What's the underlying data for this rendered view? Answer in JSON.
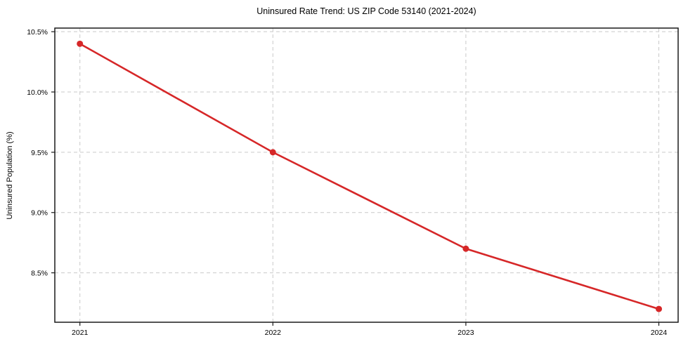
{
  "chart_data": {
    "type": "line",
    "title": "Uninsured Rate Trend: US ZIP Code 53140 (2021-2024)",
    "xlabel": "",
    "ylabel": "Uninsured Population (%)",
    "categories": [
      2021,
      2022,
      2023,
      2024
    ],
    "values": [
      10.4,
      9.5,
      8.7,
      8.2
    ],
    "x_tick_labels": [
      "2021",
      "2022",
      "2023",
      "2024"
    ],
    "y_ticks": [
      8.5,
      9.0,
      9.5,
      10.0,
      10.5
    ],
    "y_tick_labels": [
      "8.5%",
      "9.0%",
      "9.5%",
      "10.0%",
      "10.5%"
    ],
    "xlim": [
      2020.87,
      2024.1
    ],
    "ylim": [
      8.09,
      10.53
    ],
    "grid": true,
    "grid_style": "dashed",
    "legend": "none",
    "marker": "circle",
    "colors": {
      "line": "#d62728",
      "marker": "#d62728",
      "grid": "#c9c9c9",
      "spine": "#1a1a1a",
      "tick_text": "#000000",
      "background": "#ffffff"
    }
  }
}
